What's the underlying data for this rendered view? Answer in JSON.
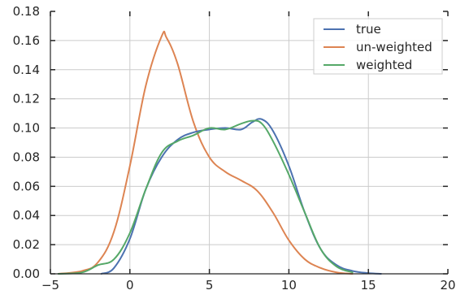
{
  "chart_data": {
    "type": "line",
    "title": "",
    "xlabel": "",
    "ylabel": "",
    "xlim": [
      -5,
      20
    ],
    "ylim": [
      0,
      0.18
    ],
    "grid": true,
    "legend_position": "top-right",
    "x_ticks": [
      -5,
      0,
      5,
      10,
      15,
      20
    ],
    "x_tick_labels": [
      "−5",
      "0",
      "5",
      "10",
      "15",
      "20"
    ],
    "y_ticks": [
      0,
      0.02,
      0.04,
      0.06,
      0.08,
      0.1,
      0.12,
      0.14,
      0.16,
      0.18
    ],
    "y_tick_labels": [
      "0.00",
      "0.02",
      "0.04",
      "0.06",
      "0.08",
      "0.10",
      "0.12",
      "0.14",
      "0.16",
      "0.18"
    ],
    "series": [
      {
        "name": "true",
        "color": "#4c72b0",
        "x": [
          -1.8,
          -1,
          0,
          1,
          2,
          3,
          4,
          5,
          6,
          7,
          7.7,
          8.3,
          9,
          10,
          11,
          12,
          13,
          14,
          15,
          15.8
        ],
        "y": [
          0.0,
          0.004,
          0.024,
          0.058,
          0.08,
          0.092,
          0.097,
          0.099,
          0.1,
          0.099,
          0.104,
          0.106,
          0.098,
          0.074,
          0.042,
          0.017,
          0.006,
          0.002,
          0.0005,
          0.0
        ]
      },
      {
        "name": "un-weighted",
        "color": "#dd8452",
        "x": [
          -4.5,
          -3,
          -2,
          -1,
          0,
          1,
          2,
          2.3,
          3,
          4,
          5,
          6,
          7,
          8,
          9,
          10,
          11,
          12,
          13,
          14
        ],
        "y": [
          0.0,
          0.002,
          0.008,
          0.029,
          0.074,
          0.129,
          0.163,
          0.162,
          0.144,
          0.104,
          0.08,
          0.07,
          0.064,
          0.057,
          0.042,
          0.023,
          0.01,
          0.004,
          0.001,
          0.0
        ]
      },
      {
        "name": "weighted",
        "color": "#55a868",
        "x": [
          -4.5,
          -3,
          -2,
          -1,
          0,
          1,
          2,
          3,
          4,
          5,
          6,
          7,
          7.7,
          8.3,
          9,
          10,
          11,
          12,
          13,
          14
        ],
        "y": [
          0.0,
          0.001,
          0.006,
          0.01,
          0.028,
          0.058,
          0.083,
          0.091,
          0.095,
          0.1,
          0.099,
          0.103,
          0.105,
          0.103,
          0.091,
          0.068,
          0.042,
          0.017,
          0.005,
          0.001
        ]
      }
    ]
  }
}
